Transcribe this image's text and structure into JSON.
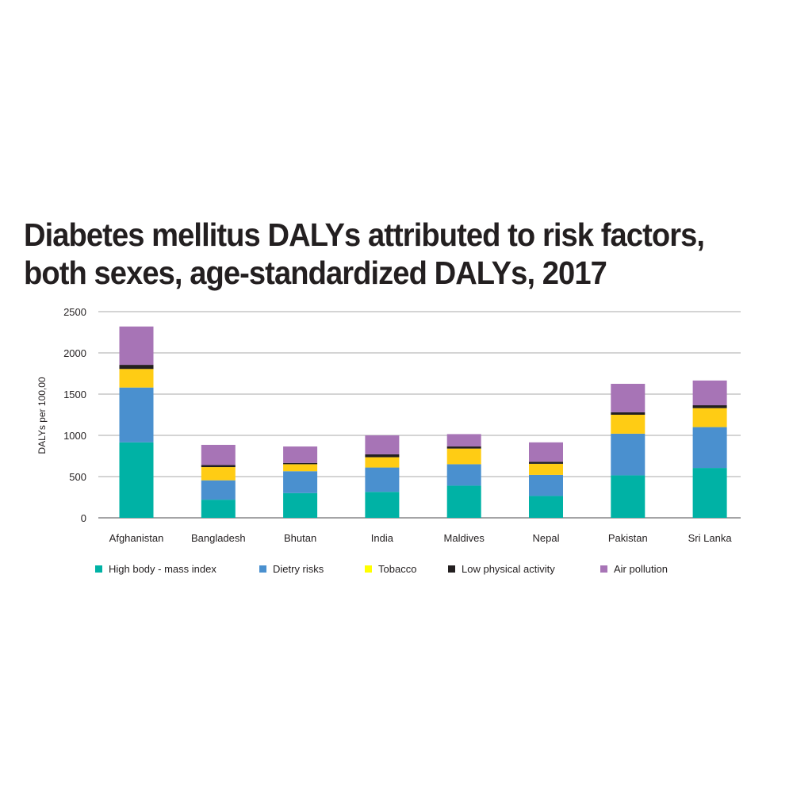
{
  "title_line1": "Diabetes mellitus DALYs attributed to risk factors,",
  "title_line2": "both sexes, age-standardized DALYs, 2017",
  "chart_data": {
    "type": "bar",
    "stacked": true,
    "title": "Diabetes mellitus DALYs attributed to risk factors, both sexes, age-standardized DALYs, 2017",
    "xlabel": "",
    "ylabel": "DALYs per 100,00",
    "ylim": [
      0,
      2500
    ],
    "yticks": [
      0,
      500,
      1000,
      1500,
      2000,
      2500
    ],
    "grid": true,
    "legend_position": "bottom",
    "categories": [
      "Afghanistan",
      "Bangladesh",
      "Bhutan",
      "India",
      "Maldives",
      "Nepal",
      "Pakistan",
      "Sri Lanka"
    ],
    "series": [
      {
        "name": "High body - mass index",
        "color": "#00b2a5",
        "values": [
          915,
          220,
          300,
          315,
          390,
          265,
          515,
          605
        ]
      },
      {
        "name": "Dietry risks",
        "color": "#4a90cf",
        "values": [
          665,
          235,
          265,
          295,
          260,
          255,
          505,
          495
        ]
      },
      {
        "name": "Tobacco",
        "color": "#ffcc14",
        "values": [
          225,
          160,
          85,
          125,
          190,
          135,
          230,
          230
        ]
      },
      {
        "name": "Low physical activity",
        "color": "#231f20",
        "values": [
          50,
          25,
          15,
          35,
          25,
          25,
          30,
          35
        ]
      },
      {
        "name": "Air pollution",
        "color": "#a774b6",
        "values": [
          465,
          245,
          200,
          230,
          150,
          235,
          345,
          300
        ]
      }
    ],
    "legend_marker_colors": [
      "#00b2a5",
      "#4a90cf",
      "#ffff00",
      "#231f20",
      "#a774b6"
    ]
  }
}
